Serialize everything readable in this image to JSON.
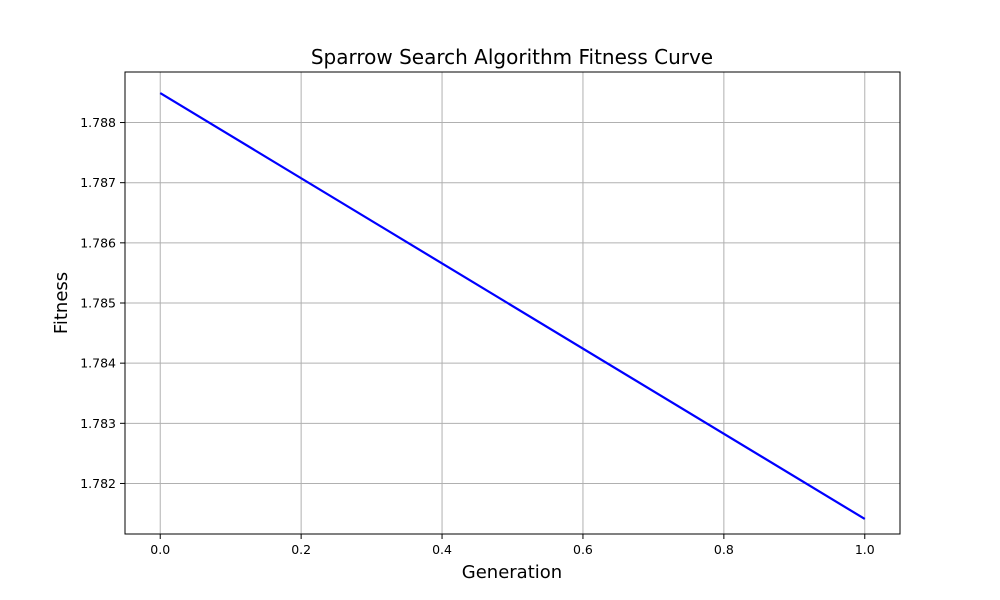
{
  "chart_data": {
    "type": "line",
    "title": "Sparrow Search Algorithm Fitness Curve",
    "xlabel": "Generation",
    "ylabel": "Fitness",
    "x": [
      0,
      1
    ],
    "series": [
      {
        "values": [
          1.78849,
          1.78141
        ],
        "color": "#0000ff"
      }
    ],
    "xlim": [
      -0.05,
      1.05
    ],
    "ylim": [
      1.78116,
      1.78884
    ],
    "xticks": [
      0.0,
      0.2,
      0.4,
      0.6,
      0.8,
      1.0
    ],
    "xtick_labels": [
      "0.0",
      "0.2",
      "0.4",
      "0.6",
      "0.8",
      "1.0"
    ],
    "yticks": [
      1.782,
      1.783,
      1.784,
      1.785,
      1.786,
      1.787,
      1.788
    ],
    "ytick_labels": [
      "1.782",
      "1.783",
      "1.784",
      "1.785",
      "1.786",
      "1.787",
      "1.788"
    ],
    "grid": true
  }
}
